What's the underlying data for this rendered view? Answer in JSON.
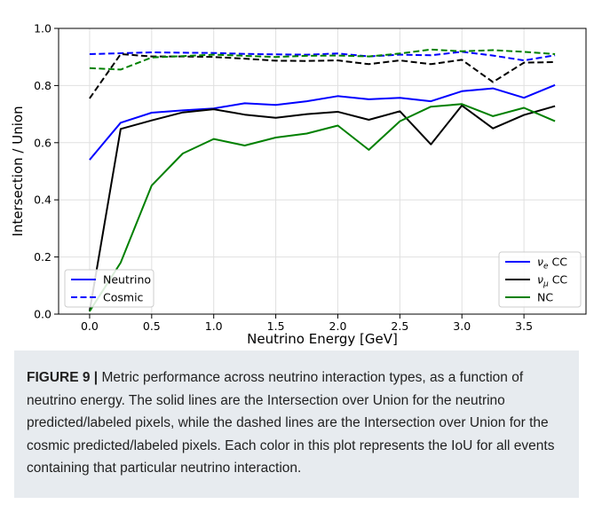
{
  "chart_data": {
    "type": "line",
    "xlabel": "Neutrino Energy [GeV]",
    "ylabel": "Intersection / Union",
    "xlim": [
      -0.25,
      4.0
    ],
    "ylim": [
      0.0,
      1.0
    ],
    "xticks": [
      0.0,
      0.5,
      1.0,
      1.5,
      2.0,
      2.5,
      3.0,
      3.5
    ],
    "xtick_labels": [
      "0.0",
      "0.5",
      "1.0",
      "1.5",
      "2.0",
      "2.5",
      "3.0",
      "3.5"
    ],
    "yticks": [
      0.0,
      0.2,
      0.4,
      0.6,
      0.8,
      1.0
    ],
    "ytick_labels": [
      "0.0",
      "0.2",
      "0.4",
      "0.6",
      "0.8",
      "1.0"
    ],
    "grid": true,
    "x": [
      0.0,
      0.25,
      0.5,
      0.75,
      1.0,
      1.25,
      1.5,
      1.75,
      2.0,
      2.25,
      2.5,
      2.75,
      3.0,
      3.25,
      3.5,
      3.75
    ],
    "series": [
      {
        "name": "νe CC",
        "color": "#0000ff",
        "style": "solid",
        "values": [
          0.54,
          0.67,
          0.705,
          0.713,
          0.72,
          0.738,
          0.732,
          0.745,
          0.763,
          0.752,
          0.757,
          0.745,
          0.78,
          0.79,
          0.757,
          0.802
        ]
      },
      {
        "name": "νμ CC",
        "color": "#000000",
        "style": "solid",
        "values": [
          0.01,
          0.648,
          0.678,
          0.706,
          0.717,
          0.698,
          0.687,
          0.7,
          0.708,
          0.68,
          0.71,
          0.594,
          0.73,
          0.65,
          0.697,
          0.728
        ]
      },
      {
        "name": "NC",
        "color": "#008000",
        "style": "solid",
        "values": [
          0.01,
          0.18,
          0.45,
          0.562,
          0.613,
          0.59,
          0.618,
          0.632,
          0.66,
          0.575,
          0.675,
          0.726,
          0.735,
          0.693,
          0.722,
          0.675
        ]
      },
      {
        "name": "νe CC",
        "color": "#0000ff",
        "style": "dashed",
        "values": [
          0.91,
          0.913,
          0.916,
          0.915,
          0.914,
          0.911,
          0.909,
          0.908,
          0.912,
          0.902,
          0.908,
          0.906,
          0.918,
          0.905,
          0.888,
          0.906
        ]
      },
      {
        "name": "νμ CC",
        "color": "#000000",
        "style": "dashed",
        "values": [
          0.755,
          0.91,
          0.902,
          0.902,
          0.9,
          0.894,
          0.887,
          0.886,
          0.888,
          0.875,
          0.888,
          0.875,
          0.89,
          0.812,
          0.88,
          0.882
        ]
      },
      {
        "name": "NC",
        "color": "#008000",
        "style": "dashed",
        "values": [
          0.861,
          0.856,
          0.898,
          0.903,
          0.908,
          0.904,
          0.9,
          0.904,
          0.905,
          0.902,
          0.912,
          0.926,
          0.92,
          0.924,
          0.918,
          0.91
        ]
      }
    ],
    "legend_type": {
      "placement": "lower-left",
      "entries": [
        {
          "label": "Neutrino",
          "color": "#0000ff",
          "style": "solid"
        },
        {
          "label": "Cosmic",
          "color": "#0000ff",
          "style": "dashed"
        }
      ]
    },
    "legend_interaction": {
      "placement": "lower-right",
      "entries": [
        {
          "base": "ν",
          "sub": "e",
          "suffix": " CC",
          "color": "#0000ff"
        },
        {
          "base": "ν",
          "sub": "μ",
          "suffix": " CC",
          "color": "#000000"
        },
        {
          "base": "NC",
          "sub": "",
          "suffix": "",
          "color": "#008000"
        }
      ]
    }
  },
  "caption": {
    "label": "FIGURE 9 |",
    "text": " Metric performance across neutrino interaction types, as a function of neutrino energy. The solid lines are the Intersection over Union for the neutrino predicted/labeled pixels, while the dashed lines are the Intersection over Union for the cosmic predicted/labeled pixels. Each color in this plot represents the IoU for all events containing that particular neutrino interaction."
  }
}
